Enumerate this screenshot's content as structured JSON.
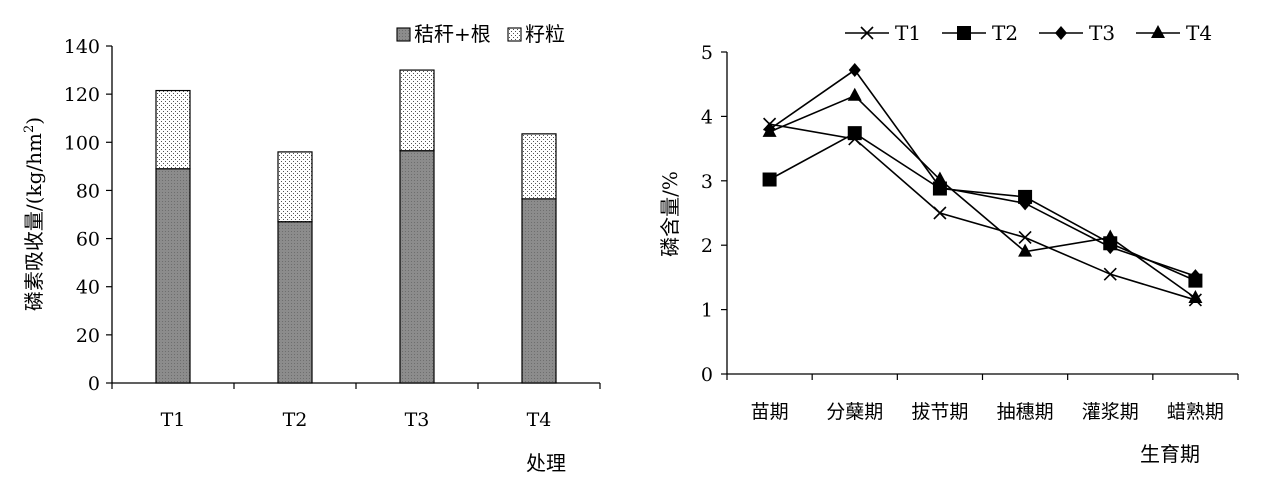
{
  "chart_data": [
    {
      "type": "bar",
      "stacked": true,
      "categories": [
        "T1",
        "T2",
        "T3",
        "T4"
      ],
      "series": [
        {
          "name": "秸秆+根",
          "values": [
            89,
            67,
            96.5,
            76.5
          ],
          "color": "#8a8a8a",
          "pattern": "solid-gray"
        },
        {
          "name": "籽粒",
          "values": [
            32.5,
            29,
            33.5,
            27
          ],
          "color": "#ffffff",
          "pattern": "dotted"
        }
      ],
      "xlabel": "处理",
      "ylabel": "磷素吸收量/(kg/hm²)",
      "ylabel_parts": {
        "main": "磷素吸收量/(kg/hm",
        "sup": "2",
        "end": ")"
      },
      "ylim": [
        0,
        140
      ],
      "yticks": [
        0,
        20,
        40,
        60,
        80,
        100,
        120,
        140
      ],
      "legend_position": "top-right",
      "grid": false
    },
    {
      "type": "line",
      "categories": [
        "苗期",
        "分蘖期",
        "拔节期",
        "抽穗期",
        "灌浆期",
        "蜡熟期"
      ],
      "series": [
        {
          "name": "T1",
          "marker": "x",
          "values": [
            3.88,
            3.65,
            2.5,
            2.12,
            1.55,
            1.15
          ]
        },
        {
          "name": "T2",
          "marker": "square",
          "values": [
            3.02,
            3.74,
            2.88,
            2.75,
            2.03,
            1.45
          ]
        },
        {
          "name": "T3",
          "marker": "diamond",
          "values": [
            3.8,
            4.72,
            2.9,
            2.65,
            1.97,
            1.52
          ]
        },
        {
          "name": "T4",
          "marker": "triangle",
          "values": [
            3.76,
            4.32,
            3.02,
            1.9,
            2.12,
            1.18
          ]
        }
      ],
      "xlabel": "生育期",
      "ylabel": "磷含量/%",
      "ylim": [
        0,
        5
      ],
      "yticks": [
        0,
        1,
        2,
        3,
        4,
        5
      ],
      "legend_position": "top",
      "grid": false
    }
  ]
}
